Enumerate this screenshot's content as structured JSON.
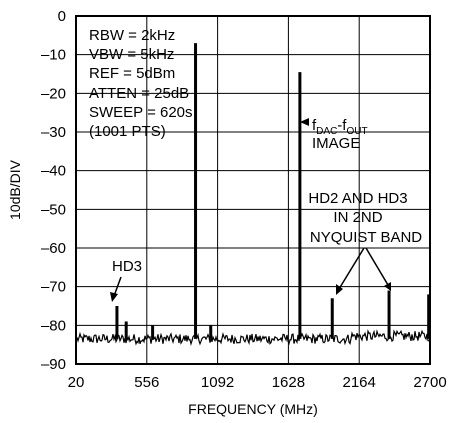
{
  "chart_data": {
    "type": "line",
    "title": "",
    "xlabel": "FREQUENCY (MHz)",
    "ylabel": "10dB/DIV",
    "xlim": [
      20,
      2700
    ],
    "ylim": [
      -90,
      0
    ],
    "x_ticks": [
      "20",
      "556",
      "1092",
      "1628",
      "2164",
      "2700"
    ],
    "y_ticks": [
      "0",
      "–10",
      "–20",
      "–30",
      "–40",
      "–50",
      "–60",
      "–70",
      "–80",
      "–90"
    ],
    "grid": true,
    "noise_floor_db": -83.5,
    "series": [
      {
        "values_description_free": true,
        "peaks": [
          {
            "x": 925,
            "y": -7
          },
          {
            "x": 1715,
            "y": -14.5
          },
          {
            "x": 330,
            "y": -75
          },
          {
            "x": 400,
            "y": -79
          },
          {
            "x": 600,
            "y": -80
          },
          {
            "x": 1040,
            "y": -80
          },
          {
            "x": 1960,
            "y": -73
          },
          {
            "x": 2390,
            "y": -71
          },
          {
            "x": 2690,
            "y": -72
          }
        ]
      }
    ],
    "annotations": {
      "settings": [
        "RBW = 2kHz",
        "VBW = 5kHz",
        "REF = 5dBm",
        "ATTEN = 25dB",
        "SWEEP = 620s",
        "(1001 PTS)"
      ],
      "image_label_main": "f",
      "image_label_sub1": "DAC",
      "image_label_mid": "-f",
      "image_label_sub2": "OUT",
      "image_label_line2": "IMAGE",
      "hd3_label": "HD3",
      "nyquist_label": [
        "HD2 AND HD3",
        "IN 2ND",
        "NYQUIST BAND"
      ]
    }
  }
}
